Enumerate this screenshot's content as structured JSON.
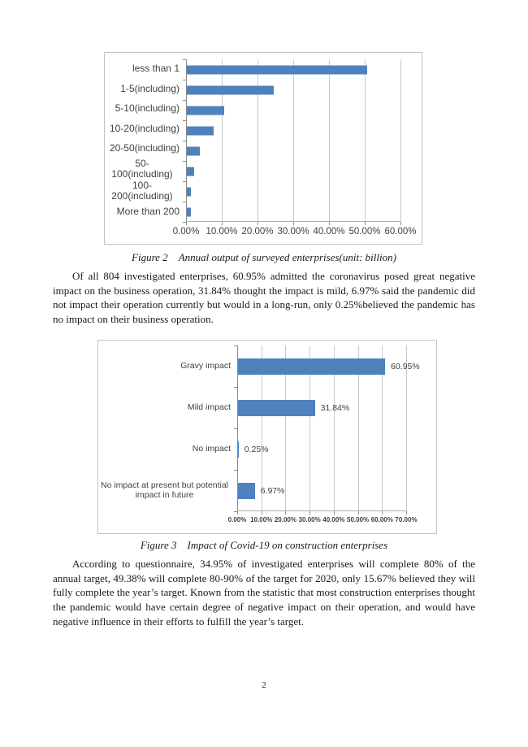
{
  "page": {
    "number": "2"
  },
  "figure2": {
    "caption_label": "Figure 2",
    "caption_title": "Annual output of surveyed enterprises(unit: billion)"
  },
  "figure3": {
    "caption_label": "Figure 3",
    "caption_title": "Impact of Covid-19 on construction enterprises"
  },
  "paragraphs": {
    "p1": "Of all 804 investigated enterprises, 60.95% admitted the coronavirus posed great negative impact on the business operation, 31.84% thought the impact is mild, 6.97% said the pandemic did not impact their operation currently but would in a long-run, only 0.25%believed the pandemic has no impact on their business operation.",
    "p2": "According to questionnaire, 34.95% of investigated enterprises will complete 80% of the annual target, 49.38% will complete 80-90% of the target for 2020, only 15.67% believed they will fully complete the year’s target. Known from the statistic that most construction enterprises thought the pandemic would have certain degree of negative impact on their operation, and would have negative influence in their efforts to fulfill the year’s target."
  },
  "chart_data": [
    {
      "type": "bar",
      "orientation": "horizontal",
      "title": "Annual output of surveyed enterprises(unit: billion)",
      "categories": [
        "less than 1",
        "1-5(including)",
        "5-10(including)",
        "10-20(including)",
        "20-50(including)",
        "50-100(including)",
        "100-200(including)",
        "More than 200"
      ],
      "values": [
        50.4,
        24.3,
        10.4,
        7.5,
        3.6,
        2.1,
        1.2,
        1.2
      ],
      "x_ticks": [
        "0.00%",
        "10.00%",
        "20.00%",
        "30.00%",
        "40.00%",
        "50.00%",
        "60.00%"
      ],
      "xlim": [
        0,
        60
      ],
      "xlabel": "",
      "ylabel": "",
      "grid": true,
      "legend": false,
      "bar_color": "#4F81BD",
      "data_labels": []
    },
    {
      "type": "bar",
      "orientation": "horizontal",
      "title": "Impact of Covid-19 on construction enterprises",
      "categories": [
        "Gravy impact",
        "Mild impact",
        "No impact",
        "No impact at present but potential impact in future"
      ],
      "values": [
        60.95,
        31.84,
        0.25,
        6.97
      ],
      "x_ticks": [
        "0.00%",
        "10.00%",
        "20.00%",
        "30.00%",
        "40.00%",
        "50.00%",
        "60.00%",
        "70.00%"
      ],
      "xlim": [
        0,
        70
      ],
      "xlabel": "",
      "ylabel": "",
      "grid": true,
      "legend": false,
      "bar_color": "#4F81BD",
      "data_labels": [
        "60.95%",
        "31.84%",
        "0.25%",
        "6.97%"
      ]
    }
  ]
}
